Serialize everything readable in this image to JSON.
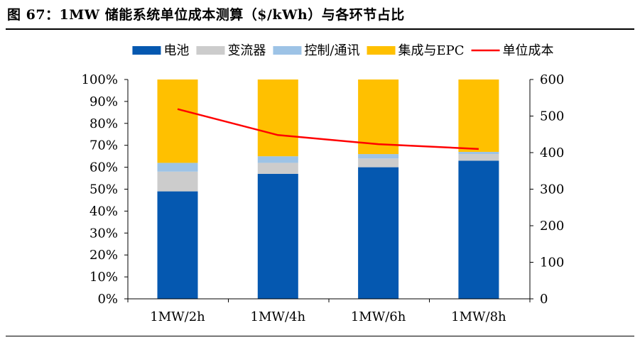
{
  "figure": {
    "title": "图 67：1MW 储能系统单位成本测算（$/kWh）与各环节占比"
  },
  "chart_data": {
    "type": "bar",
    "stacked": true,
    "categories": [
      "1MW/2h",
      "1MW/4h",
      "1MW/6h",
      "1MW/8h"
    ],
    "series": [
      {
        "name": "电池",
        "color": "#0558B0",
        "values": [
          49,
          57,
          60,
          63
        ]
      },
      {
        "name": "变流器",
        "color": "#CCCCCC",
        "values": [
          9,
          5,
          4,
          3
        ]
      },
      {
        "name": "控制/通讯",
        "color": "#9DC3E6",
        "values": [
          4,
          3,
          2,
          1
        ]
      },
      {
        "name": "集成与EPC",
        "color": "#FFC000",
        "values": [
          38,
          35,
          34,
          33
        ]
      }
    ],
    "line_series": {
      "name": "单位成本",
      "color": "#FF0000",
      "axis": "right",
      "values": [
        519,
        448,
        423,
        410
      ]
    },
    "y_left": {
      "range": [
        0,
        100
      ],
      "ticks": [
        "0%",
        "10%",
        "20%",
        "30%",
        "40%",
        "50%",
        "60%",
        "70%",
        "80%",
        "90%",
        "100%"
      ]
    },
    "y_right": {
      "range": [
        0,
        600
      ],
      "ticks": [
        "0",
        "100",
        "200",
        "300",
        "400",
        "500",
        "600"
      ]
    },
    "legend_position": "top",
    "grid": false
  }
}
